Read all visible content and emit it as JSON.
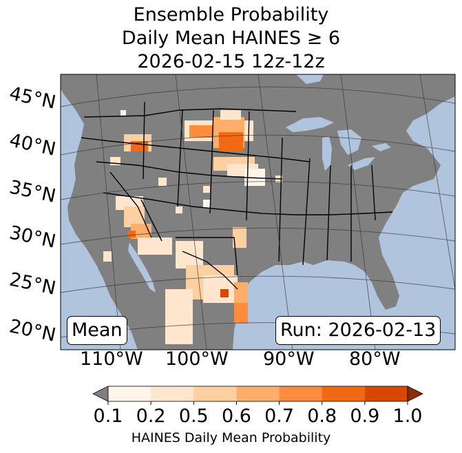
{
  "title": {
    "line1": "Ensemble Probability",
    "line2": "Daily Mean HAINES ≥ 6",
    "line3": "2026-02-15 12z-12z"
  },
  "map": {
    "left_label": "Mean",
    "right_label": "Run: 2026-02-13",
    "lat_labels": [
      "45°N",
      "40°N",
      "35°N",
      "30°N",
      "25°N",
      "20°N"
    ],
    "lon_labels": [
      "110°W",
      "100°W",
      "90°W",
      "80°W"
    ],
    "colors": {
      "ocean": "#b0c4de",
      "land": "#808080",
      "borders": "#000000"
    }
  },
  "colorbar": {
    "ticks": [
      "0.1",
      "0.2",
      "0.5",
      "0.6",
      "0.7",
      "0.8",
      "0.9",
      "1.0"
    ],
    "colors": [
      "#fff5eb",
      "#fee6ce",
      "#fdd0a2",
      "#fdae6b",
      "#fd8d3c",
      "#f16913",
      "#d94801",
      "#8c2d04"
    ],
    "under_color": "#808080",
    "label": "HAINES Daily Mean Probability"
  }
}
